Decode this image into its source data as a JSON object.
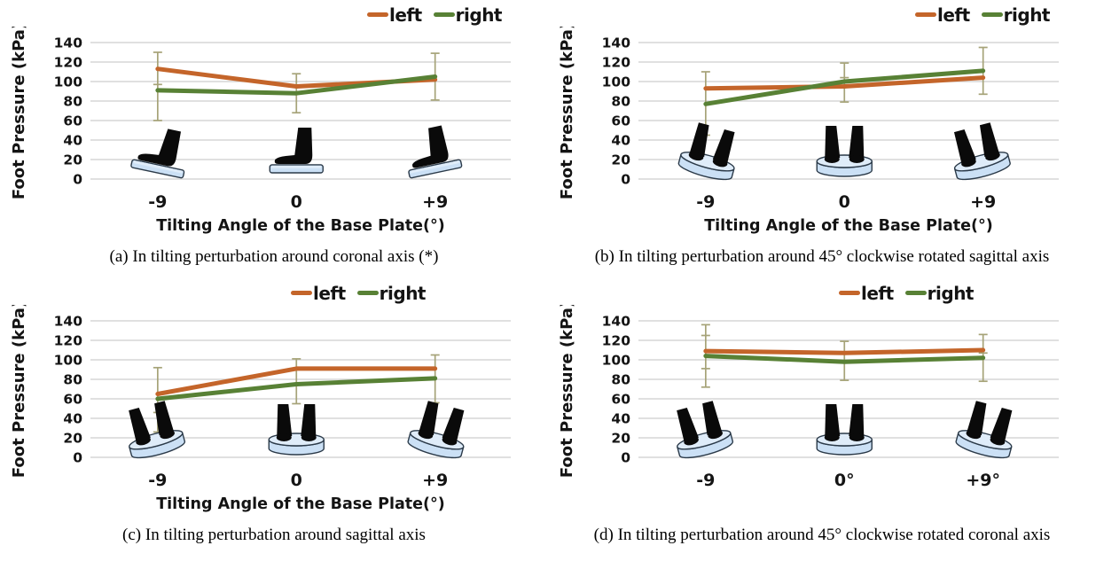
{
  "legend": {
    "items": [
      {
        "label": "left",
        "color": "#C4652A"
      },
      {
        "label": "right",
        "color": "#588135"
      }
    ],
    "position": "top-right"
  },
  "styles": {
    "gridline_color": "#D6D6D6",
    "error_bar_color": "#A6A378",
    "plate_fill": "#CBE0F5",
    "plate_top_fill": "#DFECF9",
    "plate_stroke": "#2B3A49",
    "foot_color": "#0A0A0A",
    "text_color": "#141414"
  },
  "chart_data": [
    {
      "id": "a",
      "type": "line",
      "caption": "(a) In tilting perturbation around coronal axis (*)",
      "xlabel": "Tilting Angle of the Base Plate(°)",
      "ylabel": "Foot Pressure (kPa)",
      "x_tick_labels": [
        "-9",
        "0",
        "+9"
      ],
      "y_ticks": [
        0,
        20,
        40,
        60,
        80,
        100,
        120,
        140
      ],
      "ylim": [
        0,
        140
      ],
      "grid": true,
      "series": [
        {
          "name": "left",
          "color": "#C4652A",
          "values": [
            113,
            95,
            102
          ]
        },
        {
          "name": "right",
          "color": "#588135",
          "values": [
            91,
            88,
            105
          ]
        }
      ],
      "error_bars": [
        {
          "caps": [
            130,
            97,
            60
          ]
        },
        {
          "caps": [
            108,
            68
          ]
        },
        {
          "caps": [
            129,
            81
          ]
        }
      ],
      "foot_icons": {
        "view": "side",
        "plate_angles": [
          12,
          0,
          -12
        ]
      }
    },
    {
      "id": "b",
      "type": "line",
      "caption": "(b) In tilting perturbation around 45° clockwise rotated sagittal axis",
      "xlabel": "Tilting Angle of the Base Plate(°)",
      "ylabel": "Foot Pressure (kPa)",
      "x_tick_labels": [
        "-9",
        "0",
        "+9"
      ],
      "y_ticks": [
        0,
        20,
        40,
        60,
        80,
        100,
        120,
        140
      ],
      "ylim": [
        0,
        140
      ],
      "grid": true,
      "series": [
        {
          "name": "left",
          "color": "#C4652A",
          "values": [
            93,
            95,
            104
          ]
        },
        {
          "name": "right",
          "color": "#588135",
          "values": [
            77,
            100,
            111
          ]
        }
      ],
      "error_bars": [
        {
          "caps": [
            110,
            45
          ]
        },
        {
          "caps": [
            119,
            104,
            79
          ]
        },
        {
          "caps": [
            135,
            87
          ]
        }
      ],
      "foot_icons": {
        "view": "pair",
        "plate_angles": [
          15,
          0,
          -15
        ]
      }
    },
    {
      "id": "c",
      "type": "line",
      "caption": "(c) In tilting perturbation around sagittal axis",
      "xlabel": "Tilting Angle of the Base Plate(°)",
      "ylabel": "Foot Pressure (kPa)",
      "x_tick_labels": [
        "-9",
        "0",
        "+9"
      ],
      "y_ticks": [
        0,
        20,
        40,
        60,
        80,
        100,
        120,
        140
      ],
      "ylim": [
        0,
        140
      ],
      "grid": true,
      "series": [
        {
          "name": "left",
          "color": "#C4652A",
          "values": [
            65,
            91,
            91
          ]
        },
        {
          "name": "right",
          "color": "#588135",
          "values": [
            60,
            75,
            81
          ]
        }
      ],
      "error_bars": [
        {
          "caps": [
            92,
            46,
            26
          ]
        },
        {
          "caps": [
            101,
            55
          ]
        },
        {
          "caps": [
            105,
            56
          ]
        }
      ],
      "foot_icons": {
        "view": "pair",
        "plate_angles": [
          -15,
          0,
          15
        ]
      }
    },
    {
      "id": "d",
      "type": "line",
      "caption": "(d) In tilting perturbation around 45° clockwise rotated coronal axis",
      "xlabel": "",
      "ylabel": "Foot Pressure (kPa)",
      "x_tick_labels": [
        "-9",
        "0°",
        "+9°"
      ],
      "y_ticks": [
        0,
        20,
        40,
        60,
        80,
        100,
        120,
        140
      ],
      "ylim": [
        0,
        140
      ],
      "grid": true,
      "series": [
        {
          "name": "left",
          "color": "#C4652A",
          "values": [
            109,
            107,
            110
          ]
        },
        {
          "name": "right",
          "color": "#588135",
          "values": [
            104,
            98,
            102
          ]
        }
      ],
      "error_bars": [
        {
          "caps": [
            136,
            125,
            91,
            72
          ]
        },
        {
          "caps": [
            119,
            79
          ]
        },
        {
          "caps": [
            126,
            107,
            78
          ]
        }
      ],
      "foot_icons": {
        "view": "pair",
        "plate_angles": [
          -15,
          0,
          15
        ]
      }
    }
  ]
}
